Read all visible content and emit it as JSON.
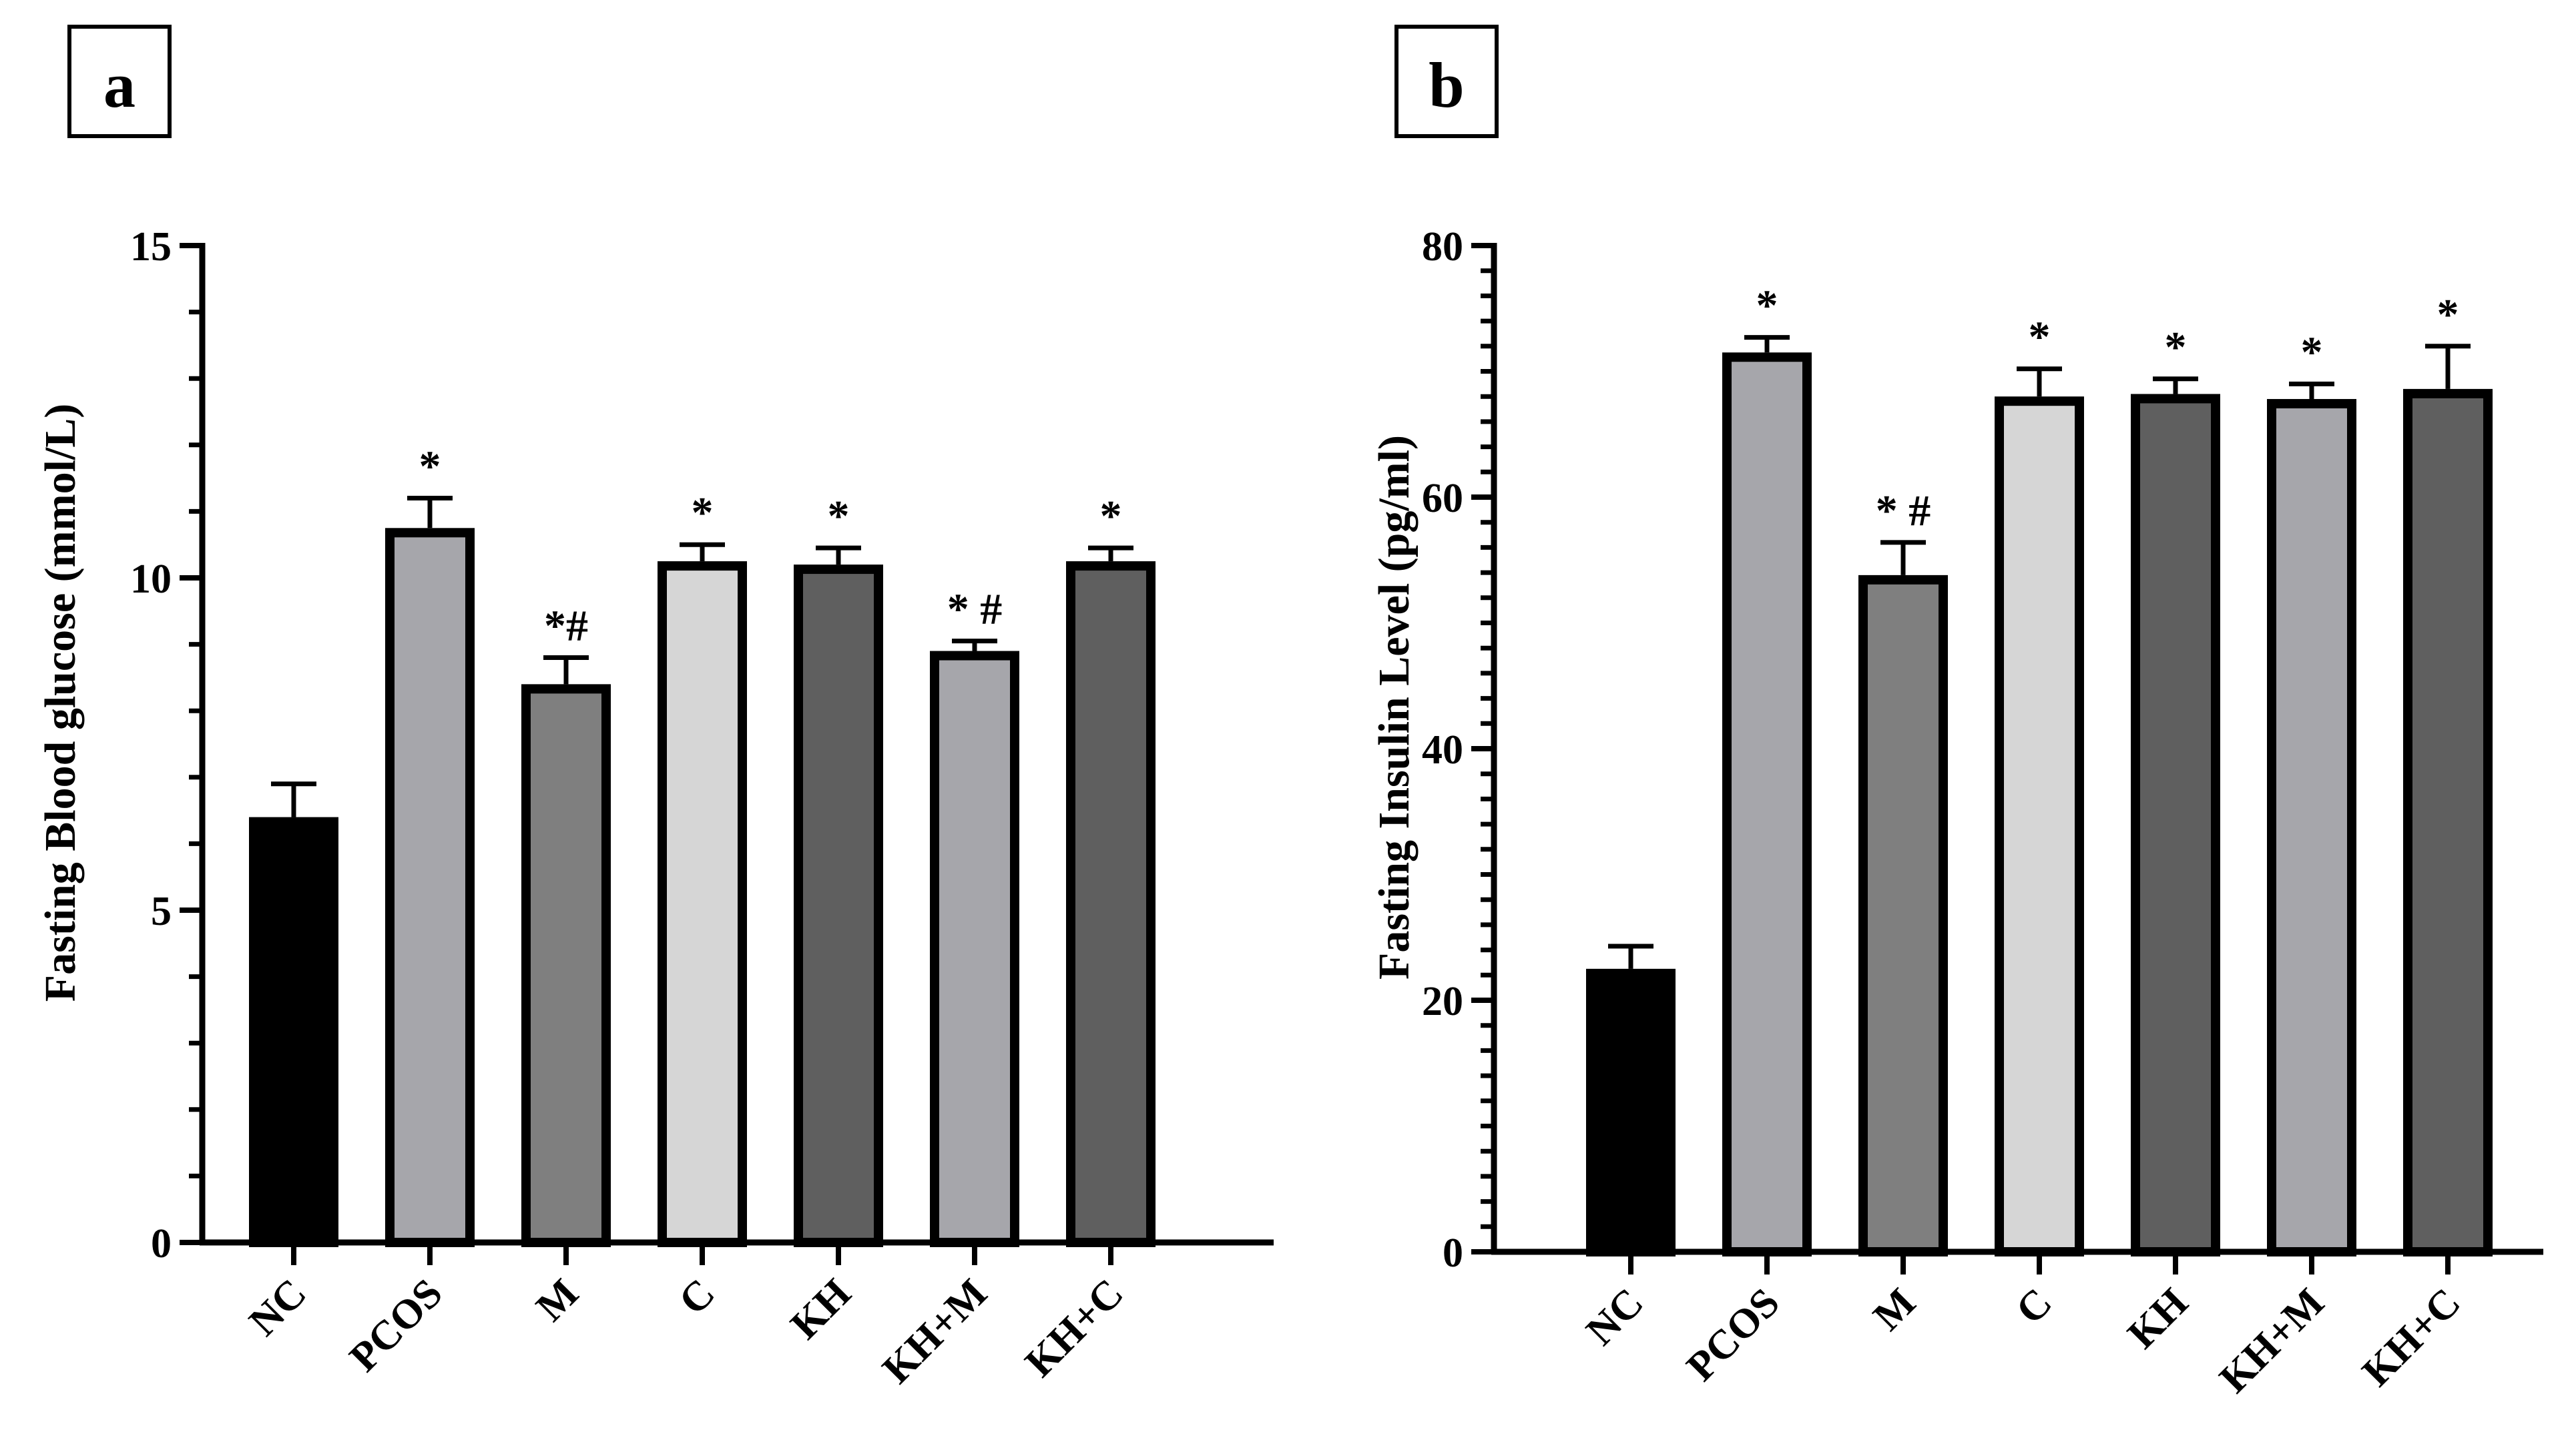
{
  "chart_data": [
    {
      "panel_label": "a",
      "type": "bar",
      "title": "",
      "xlabel": "",
      "ylabel": "Fasting Blood glucose (mmol/L)",
      "ylim": [
        0,
        15
      ],
      "yticks": [
        0,
        5,
        10,
        15
      ],
      "minor_ticks": 5,
      "categories": [
        "NC",
        "PCOS",
        "M",
        "C",
        "KH",
        "KH+M",
        "KH+C"
      ],
      "values": [
        6.4,
        10.75,
        8.4,
        10.25,
        10.2,
        8.9,
        10.25
      ],
      "errors": [
        0.5,
        0.45,
        0.4,
        0.25,
        0.25,
        0.15,
        0.2
      ],
      "annotations": [
        "",
        "*",
        "*#",
        "*",
        "*",
        "* #",
        "*"
      ],
      "colors": [
        "#000000",
        "#a6a6ab",
        "#7f7f7f",
        "#d6d6d6",
        "#5f5f5f",
        "#a6a6ab",
        "#5f5f5f"
      ]
    },
    {
      "panel_label": "b",
      "type": "bar",
      "title": "",
      "xlabel": "",
      "ylabel": "Fasting Insulin Level (pg/ml)",
      "ylim": [
        0,
        80
      ],
      "yticks": [
        0,
        20,
        40,
        60,
        80
      ],
      "minor_ticks": 10,
      "categories": [
        "NC",
        "PCOS",
        "M",
        "C",
        "KH",
        "KH+M",
        "KH+C"
      ],
      "values": [
        22.5,
        71.5,
        53.8,
        68.0,
        68.2,
        67.8,
        68.6
      ],
      "errors": [
        1.8,
        1.2,
        2.6,
        2.2,
        1.2,
        1.2,
        3.4
      ],
      "annotations": [
        "",
        "*",
        "* #",
        "*",
        "*",
        "*",
        "*"
      ],
      "colors": [
        "#000000",
        "#a6a6ab",
        "#7f7f7f",
        "#d6d6d6",
        "#5f5f5f",
        "#a6a6ab",
        "#5f5f5f"
      ]
    }
  ]
}
